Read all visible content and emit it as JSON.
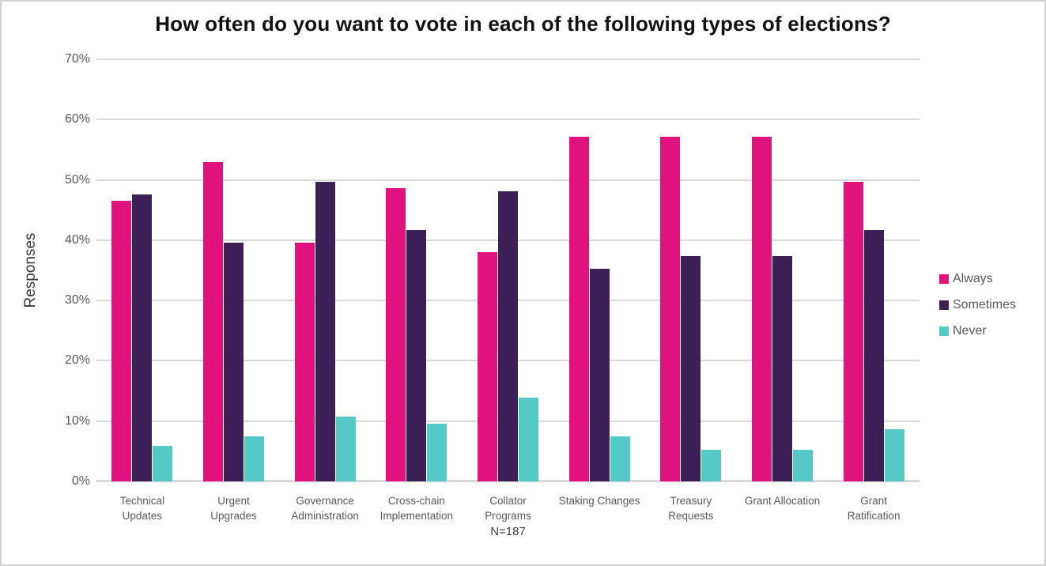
{
  "title": "How often do you want to vote in each of the following types of elections?",
  "ylabel": "Responses",
  "footnote": "N=187",
  "chart_data": {
    "type": "bar",
    "title": "How often do you want to vote in each of the following types of elections?",
    "xlabel": "",
    "ylabel": "Responses",
    "ylim": [
      0,
      70
    ],
    "ytick_step": 10,
    "ytick_format": "percent",
    "grid": true,
    "legend_position": "right",
    "sample_size": "N=187",
    "categories": [
      "Technical Updates",
      "Urgent Upgrades",
      "Governance Administration",
      "Cross-chain Implementation",
      "Collator Programs",
      "Staking Changes",
      "Treasury Requests",
      "Grant Allocation",
      "Grant Ratification"
    ],
    "tick_label_lines": [
      [
        "Technical",
        "Updates"
      ],
      [
        "Urgent",
        "Upgrades"
      ],
      [
        "Governance",
        "Administration"
      ],
      [
        "Cross-chain",
        "Implementation"
      ],
      [
        "Collator",
        "Programs"
      ],
      [
        "Staking Changes"
      ],
      [
        "Treasury",
        "Requests"
      ],
      [
        "Grant Allocation"
      ],
      [
        "Grant",
        "Ratification"
      ]
    ],
    "series": [
      {
        "name": "Always",
        "color": "#e0137e",
        "values": [
          46.5,
          52.9,
          39.6,
          48.7,
          38.0,
          57.2,
          57.2,
          57.2,
          49.7
        ]
      },
      {
        "name": "Sometimes",
        "color": "#3b1f55",
        "values": [
          47.6,
          39.6,
          49.7,
          41.7,
          48.1,
          35.3,
          37.4,
          37.4,
          41.7
        ]
      },
      {
        "name": "Never",
        "color": "#55c9c6",
        "values": [
          5.9,
          7.5,
          10.7,
          9.6,
          13.9,
          7.5,
          5.3,
          5.3,
          8.6
        ]
      }
    ]
  }
}
